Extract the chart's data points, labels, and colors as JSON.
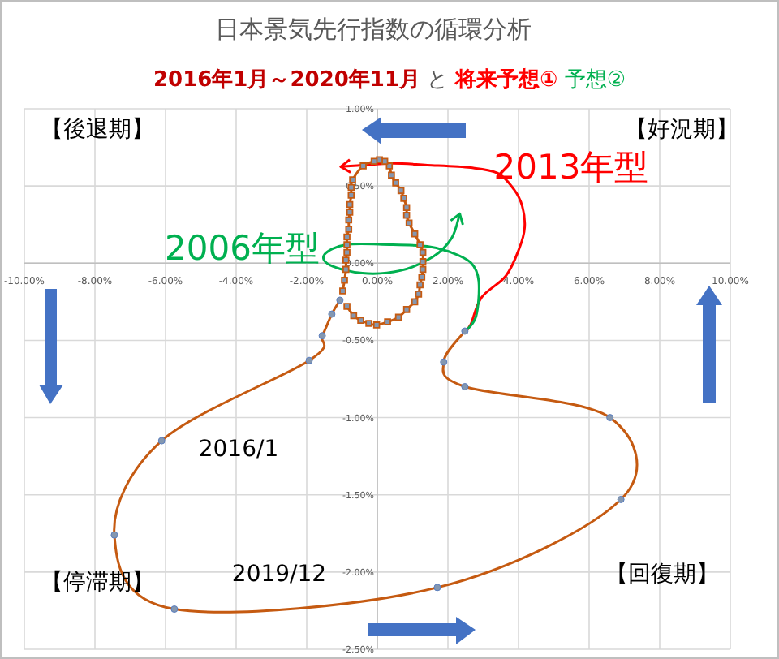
{
  "chart_data": {
    "type": "line",
    "title": "日本景気先行指数の循環分析",
    "subtitle": "2016年1月～2020年11月 と 将来予想① 予想②",
    "xlim": [
      -10,
      10
    ],
    "ylim": [
      -2.5,
      1
    ],
    "xticks": [
      {
        "value": -10,
        "label": "-10.00%"
      },
      {
        "value": -8,
        "label": "-8.00%"
      },
      {
        "value": -6,
        "label": "-6.00%"
      },
      {
        "value": -4,
        "label": "-4.00%"
      },
      {
        "value": -2,
        "label": "-2.00%"
      },
      {
        "value": 0,
        "label": "0.00%"
      },
      {
        "value": 2,
        "label": "2.00%"
      },
      {
        "value": 4,
        "label": "4.00%"
      },
      {
        "value": 6,
        "label": "6.00%"
      },
      {
        "value": 8,
        "label": "8.00%"
      },
      {
        "value": 10,
        "label": "10.00%"
      }
    ],
    "yticks": [
      {
        "value": 1,
        "label": "1.00%"
      },
      {
        "value": 0.5,
        "label": "0.50%"
      },
      {
        "value": 0,
        "label": "0.00%"
      },
      {
        "value": -0.5,
        "label": "-0.50%"
      },
      {
        "value": -1,
        "label": "-1.00%"
      },
      {
        "value": -1.5,
        "label": "-1.50%"
      },
      {
        "value": -2,
        "label": "-2.00%"
      },
      {
        "value": -2.5,
        "label": "-2.50%"
      }
    ],
    "grid": true,
    "line_style": "solid",
    "series": [
      {
        "color": "#c55a11",
        "marker": "square",
        "x": [
          -0.86,
          -0.67,
          -0.47,
          -0.24,
          -0.02,
          0.29,
          0.6,
          0.83,
          1.06,
          1.17,
          1.21,
          1.26,
          1.29,
          1.29,
          1.29,
          1.21,
          1.06,
          0.9,
          0.83,
          0.83,
          0.75,
          0.67,
          0.52,
          0.4,
          0.34,
          0.21,
          0.06,
          -0.09,
          -0.4,
          -0.7,
          -0.74,
          -0.74,
          -0.78,
          -0.78,
          -0.81,
          -0.81,
          -0.86,
          -0.86,
          -0.86,
          -0.89,
          -0.89,
          -0.93,
          -0.98
        ],
        "values": [
          -0.28,
          -0.34,
          -0.37,
          -0.39,
          -0.4,
          -0.38,
          -0.35,
          -0.3,
          -0.25,
          -0.2,
          -0.14,
          -0.09,
          -0.04,
          0.01,
          0.07,
          0.12,
          0.19,
          0.26,
          0.31,
          0.36,
          0.42,
          0.47,
          0.52,
          0.57,
          0.63,
          0.66,
          0.67,
          0.66,
          0.63,
          0.54,
          0.49,
          0.44,
          0.38,
          0.33,
          0.28,
          0.22,
          0.17,
          0.12,
          0.07,
          0.02,
          -0.04,
          -0.11,
          -0.18
        ]
      },
      {
        "color": "#c55a11",
        "marker": "circle",
        "x": [
          -1.06,
          -1.29,
          -1.56,
          -1.93,
          -6.11,
          -7.45,
          -5.75,
          1.7,
          6.9,
          6.59,
          2.48,
          1.88,
          2.48
        ],
        "values": [
          -0.24,
          -0.33,
          -0.47,
          -0.63,
          -1.15,
          -1.76,
          -2.24,
          -2.1,
          -1.53,
          -1.0,
          -0.8,
          -0.64,
          -0.44
        ]
      }
    ],
    "annotations": [
      "【後退期】",
      "【好況期】",
      "【停滞期】",
      "【回復期】",
      "2016/1",
      "2019/12",
      "2013年型",
      "2006年型"
    ]
  }
}
